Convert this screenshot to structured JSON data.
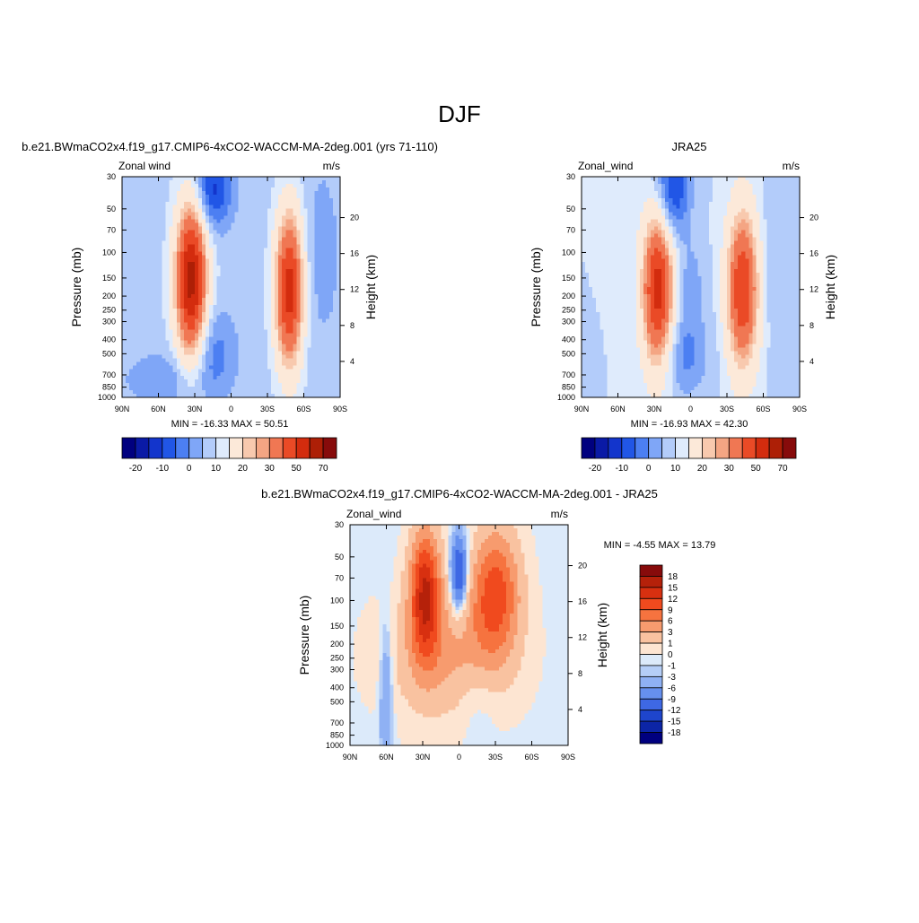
{
  "main_title": "DJF",
  "chart_data": [
    {
      "type": "heatmap",
      "title": "b.e21.BWmaCO2x4.f19_g17.CMIP6-4xCO2-WACCM-MA-2deg.001 (yrs 71-110)",
      "variable": "Zonal wind",
      "units": "m/s",
      "xlabel": "",
      "ylabel": "Pressure (mb)",
      "ylabel_right": "Height (km)",
      "x_ticks": [
        "90N",
        "60N",
        "30N",
        "0",
        "30S",
        "60S",
        "90S"
      ],
      "y_ticks": [
        "30",
        "50",
        "70",
        "100",
        "150",
        "200",
        "250",
        "300",
        "400",
        "500",
        "700",
        "850",
        "1000"
      ],
      "y_right_ticks": [
        "20",
        "16",
        "12",
        "8",
        "4"
      ],
      "xlim": [
        90,
        -90
      ],
      "ylim": [
        1000,
        30
      ],
      "y_scale": "log",
      "stats": "MIN = -16.33  MAX =  50.51",
      "min": -16.33,
      "max": 50.51,
      "colorbar": {
        "labels": [
          "-20",
          "-10",
          "0",
          "10",
          "20",
          "30",
          "50",
          "70"
        ],
        "colors": [
          "#00007f",
          "#0a1aa6",
          "#1335cc",
          "#2156e6",
          "#4c7ff2",
          "#7fa6f7",
          "#b3ccfa",
          "#dfebfc",
          "#fce9d9",
          "#f8c9ae",
          "#f4a583",
          "#f07753",
          "#ea4a26",
          "#d32c0e",
          "#ad1f06",
          "#870b0b"
        ]
      }
    },
    {
      "type": "heatmap",
      "title": "JRA25",
      "variable": "Zonal_wind",
      "units": "m/s",
      "xlabel": "",
      "ylabel": "Pressure (mb)",
      "ylabel_right": "Height (km)",
      "x_ticks": [
        "90N",
        "60N",
        "30N",
        "0",
        "30S",
        "60S",
        "90S"
      ],
      "y_ticks": [
        "30",
        "50",
        "70",
        "100",
        "150",
        "200",
        "250",
        "300",
        "400",
        "500",
        "700",
        "850",
        "1000"
      ],
      "y_right_ticks": [
        "20",
        "16",
        "12",
        "8",
        "4"
      ],
      "xlim": [
        90,
        -90
      ],
      "ylim": [
        1000,
        30
      ],
      "y_scale": "log",
      "stats": "MIN = -16.93  MAX =  42.30",
      "min": -16.93,
      "max": 42.3,
      "colorbar": {
        "labels": [
          "-20",
          "-10",
          "0",
          "10",
          "20",
          "30",
          "50",
          "70"
        ],
        "colors": [
          "#00007f",
          "#0a1aa6",
          "#1335cc",
          "#2156e6",
          "#4c7ff2",
          "#7fa6f7",
          "#b3ccfa",
          "#dfebfc",
          "#fce9d9",
          "#f8c9ae",
          "#f4a583",
          "#f07753",
          "#ea4a26",
          "#d32c0e",
          "#ad1f06",
          "#870b0b"
        ]
      }
    },
    {
      "type": "heatmap",
      "title": "b.e21.BWmaCO2x4.f19_g17.CMIP6-4xCO2-WACCM-MA-2deg.001 - JRA25",
      "variable": "Zonal_wind",
      "units": "m/s",
      "xlabel": "",
      "ylabel": "Pressure (mb)",
      "ylabel_right": "Height (km)",
      "x_ticks": [
        "90N",
        "60N",
        "30N",
        "0",
        "30S",
        "60S",
        "90S"
      ],
      "y_ticks": [
        "30",
        "50",
        "70",
        "100",
        "150",
        "200",
        "250",
        "300",
        "400",
        "500",
        "700",
        "850",
        "1000"
      ],
      "y_right_ticks": [
        "20",
        "16",
        "12",
        "8",
        "4"
      ],
      "xlim": [
        90,
        -90
      ],
      "ylim": [
        1000,
        30
      ],
      "y_scale": "log",
      "stats": "MIN =  -4.55  MAX =  13.79",
      "min": -4.55,
      "max": 13.79,
      "colorbar": {
        "labels": [
          "18",
          "15",
          "12",
          "9",
          "6",
          "3",
          "1",
          "0",
          "-1",
          "-3",
          "-6",
          "-9",
          "-12",
          "-15",
          "-18"
        ],
        "colors": [
          "#870b0b",
          "#b5210a",
          "#d83010",
          "#f04a1e",
          "#f6733f",
          "#f79b6e",
          "#f9c2a0",
          "#fde5d2",
          "#dceafa",
          "#b5cef7",
          "#8fb1f4",
          "#6690ee",
          "#3e68e4",
          "#1e45cc",
          "#0c25a6",
          "#00007f"
        ]
      }
    }
  ]
}
